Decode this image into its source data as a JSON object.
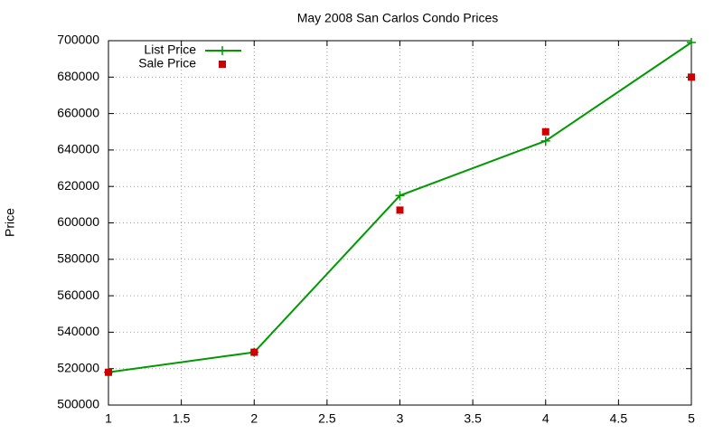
{
  "chart_data": {
    "type": "line",
    "title": "May 2008 San Carlos Condo Prices",
    "y_label": "Price",
    "x": [
      1,
      2,
      3,
      4,
      5
    ],
    "series": [
      {
        "name": "List Price",
        "color": "#009900",
        "style": "linespoints",
        "values": [
          518000,
          529000,
          615000,
          645000,
          699000
        ]
      },
      {
        "name": "Sale Price",
        "color": "#cc0000",
        "style": "points",
        "values": [
          518000,
          529000,
          607000,
          650000,
          680000
        ]
      }
    ],
    "xlim": [
      1,
      5
    ],
    "xticks": [
      1,
      1.5,
      2,
      2.5,
      3,
      3.5,
      4,
      4.5,
      5
    ],
    "ylim": [
      500000,
      700000
    ],
    "yticks": [
      500000,
      520000,
      540000,
      560000,
      580000,
      600000,
      620000,
      640000,
      660000,
      680000,
      700000
    ],
    "grid": true,
    "legend": "top-left"
  }
}
